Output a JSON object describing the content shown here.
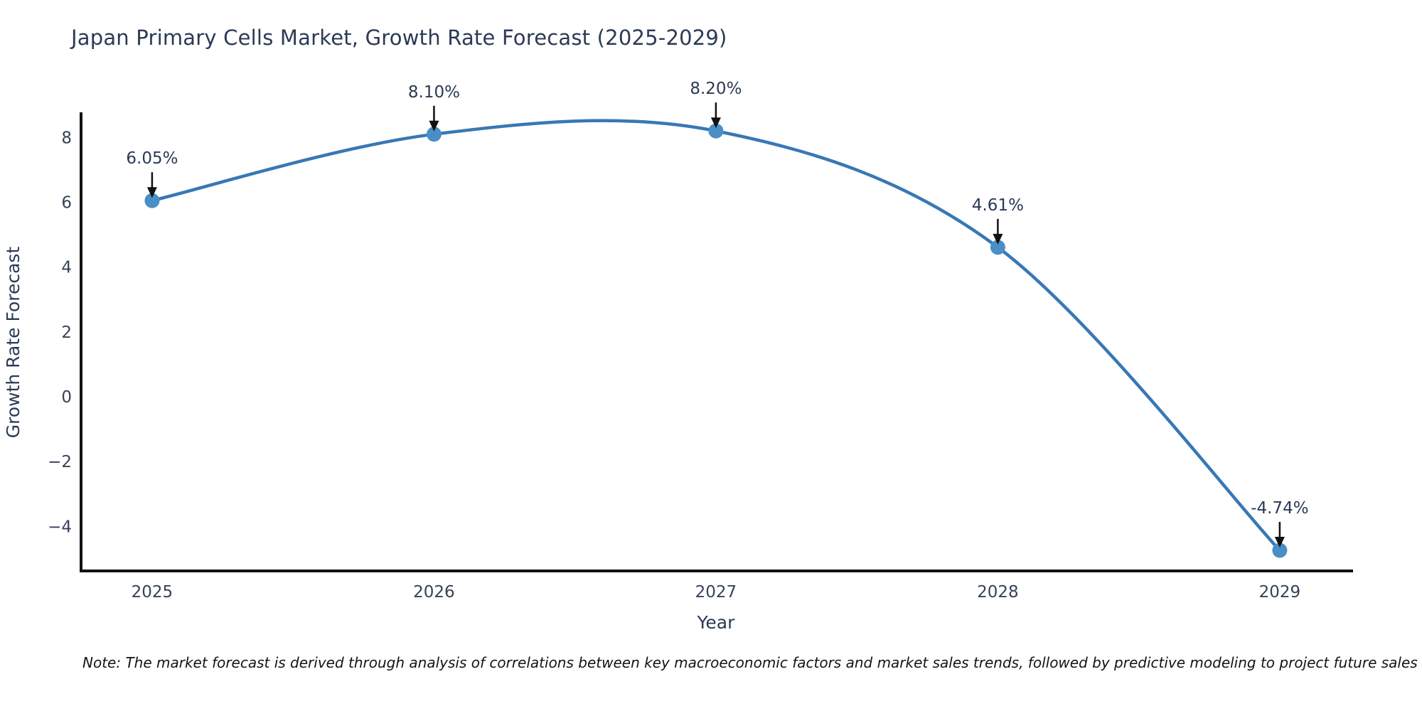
{
  "title": "Japan Primary Cells Market, Growth Rate Forecast (2025-2029)",
  "note": "Note: The market forecast is derived through analysis of correlations between key macroeconomic factors and market sales trends, followed by predictive modeling to project future sales",
  "chart_data": {
    "type": "line",
    "line_shape": "spline",
    "title": "Japan Primary Cells Market, Growth Rate Forecast (2025-2029)",
    "xlabel": "Year",
    "ylabel": "Growth Rate Forecast",
    "x": [
      2025,
      2026,
      2027,
      2028,
      2029
    ],
    "values": [
      6.05,
      8.1,
      8.2,
      4.61,
      -4.74
    ],
    "point_labels": [
      "6.05%",
      "8.10%",
      "8.20%",
      "4.61%",
      "-4.74%"
    ],
    "xticks": [
      {
        "value": 2025,
        "label": "2025"
      },
      {
        "value": 2026,
        "label": "2026"
      },
      {
        "value": 2027,
        "label": "2027"
      },
      {
        "value": 2028,
        "label": "2028"
      },
      {
        "value": 2029,
        "label": "2029"
      }
    ],
    "yticks": [
      {
        "value": 8,
        "label": "8"
      },
      {
        "value": 6,
        "label": "6"
      },
      {
        "value": 4,
        "label": "4"
      },
      {
        "value": 2,
        "label": "2"
      },
      {
        "value": 0,
        "label": "0"
      },
      {
        "value": -2,
        "label": "−2"
      },
      {
        "value": -4,
        "label": "−4"
      }
    ],
    "xlim": [
      2024.748,
      2029.26
    ],
    "ylim": [
      -5.375,
      8.731
    ],
    "grid": false,
    "legend": "none",
    "colors": {
      "line": "#3878b4",
      "marker": "#4a8ec6",
      "axis": "#111111",
      "arrow": "#111111",
      "tick_text": "#37425a",
      "axis_title_text": "#2b3a55"
    }
  }
}
